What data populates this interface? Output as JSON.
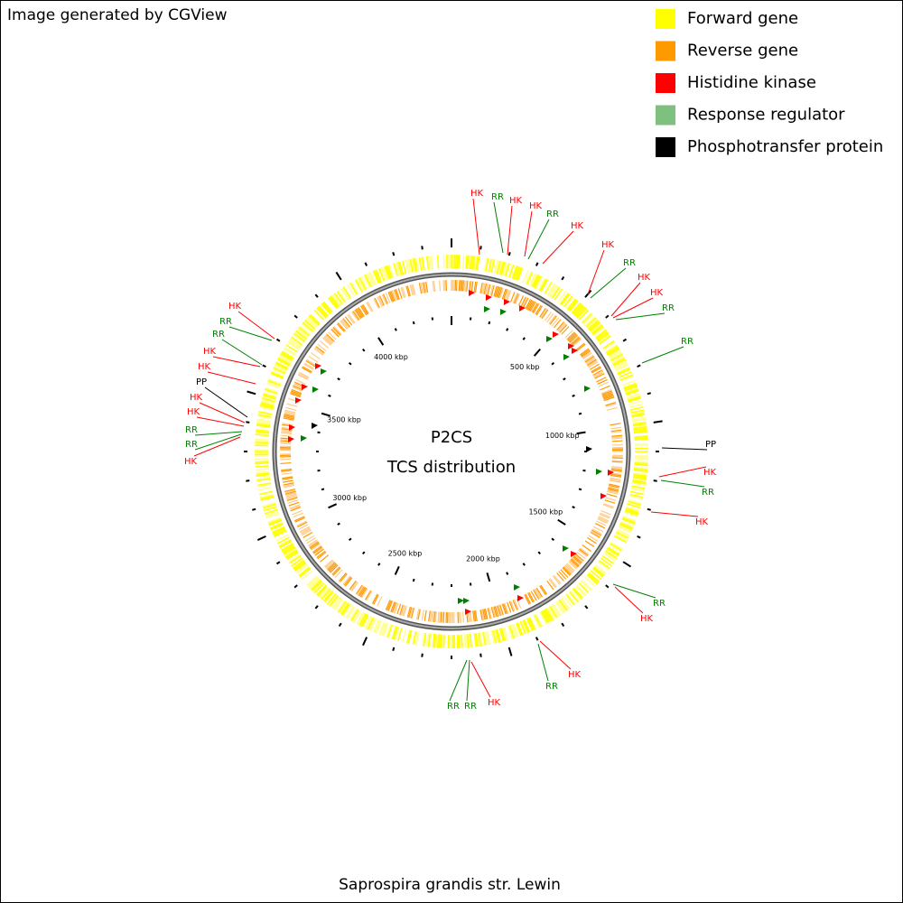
{
  "header": {
    "credit": "Image generated by CGView"
  },
  "legend": [
    {
      "label": "Forward gene",
      "color": "#ffff00"
    },
    {
      "label": "Reverse gene",
      "color": "#ff9900"
    },
    {
      "label": "Histidine kinase",
      "color": "#ff0000"
    },
    {
      "label": "Response regulator",
      "color": "#7fbf7f"
    },
    {
      "label": "Phosphotransfer protein",
      "color": "#000000"
    }
  ],
  "center": {
    "title": "P2CS",
    "subtitle": "TCS distribution"
  },
  "scale_labels": [
    "500 kbp",
    "1000 kbp",
    "1500 kbp",
    "2000 kbp",
    "2500 kbp",
    "3000 kbp",
    "3500 kbp",
    "4000 kbp"
  ],
  "callouts": [
    "HK",
    "RR",
    "HK",
    "HK",
    "RR",
    "HK",
    "HK",
    "RR",
    "HK",
    "HK",
    "RR",
    "RR",
    "PP",
    "HK",
    "RR",
    "HK",
    "RR",
    "HK",
    "HK",
    "RR",
    "HK",
    "RR",
    "RR",
    "HK",
    "RR",
    "RR",
    "HK",
    "HK",
    "PP",
    "HK",
    "HK",
    "RR",
    "RR",
    "HK"
  ],
  "footer": {
    "organism": "Saprospira grandis str. Lewin"
  }
}
